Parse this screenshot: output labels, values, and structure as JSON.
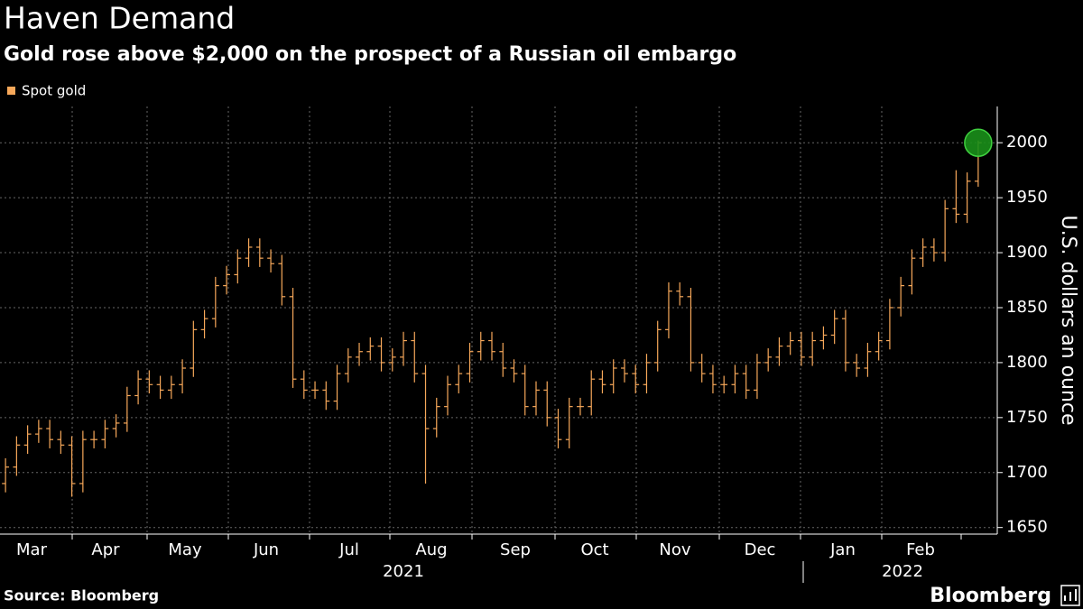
{
  "chart_data": {
    "type": "ohlc",
    "title": "Haven Demand",
    "subtitle": "Gold rose above $2,000 on the prospect of a Russian oil embargo",
    "y_axis_label": "U.S. dollars an ounce",
    "source": "Source: Bloomberg",
    "brand": "Bloomberg",
    "legend": "top-left",
    "grid": true,
    "categories": [
      "Mar",
      "Apr",
      "May",
      "Jun",
      "Jul",
      "Aug",
      "Sep",
      "Oct",
      "Nov",
      "Dec",
      "Jan",
      "Feb"
    ],
    "years": [
      "2021",
      "2022"
    ],
    "ylim": [
      1644,
      2033
    ],
    "yticks": [
      1650,
      1700,
      1750,
      1800,
      1850,
      1900,
      1950,
      2000
    ],
    "series": [
      {
        "name": "Spot gold",
        "color": "#f7a85a",
        "open": [
          1690,
          1705,
          1725,
          1735,
          1740,
          1730,
          1725,
          1690,
          1730,
          1730,
          1740,
          1745,
          1770,
          1785,
          1780,
          1775,
          1780,
          1795,
          1830,
          1840,
          1870,
          1880,
          1895,
          1905,
          1895,
          1890,
          1860,
          1785,
          1775,
          1775,
          1765,
          1790,
          1805,
          1810,
          1815,
          1800,
          1805,
          1820,
          1790,
          1740,
          1760,
          1780,
          1790,
          1810,
          1820,
          1810,
          1795,
          1790,
          1760,
          1775,
          1750,
          1730,
          1760,
          1760,
          1785,
          1780,
          1795,
          1790,
          1780,
          1800,
          1830,
          1865,
          1860,
          1800,
          1790,
          1780,
          1780,
          1790,
          1775,
          1800,
          1805,
          1815,
          1820,
          1805,
          1820,
          1825,
          1840,
          1800,
          1795,
          1810,
          1820,
          1850,
          1870,
          1895,
          1905,
          1900,
          1940,
          1935,
          1965
        ],
        "high": [
          1713,
          1733,
          1743,
          1748,
          1748,
          1738,
          1733,
          1738,
          1738,
          1748,
          1753,
          1778,
          1793,
          1793,
          1788,
          1788,
          1803,
          1838,
          1848,
          1878,
          1888,
          1903,
          1913,
          1913,
          1903,
          1898,
          1868,
          1793,
          1783,
          1783,
          1798,
          1813,
          1818,
          1823,
          1823,
          1813,
          1828,
          1828,
          1798,
          1768,
          1788,
          1798,
          1818,
          1828,
          1828,
          1818,
          1803,
          1798,
          1783,
          1783,
          1758,
          1768,
          1768,
          1793,
          1793,
          1803,
          1803,
          1798,
          1808,
          1838,
          1873,
          1873,
          1868,
          1808,
          1798,
          1788,
          1798,
          1798,
          1808,
          1813,
          1823,
          1828,
          1828,
          1828,
          1833,
          1848,
          1848,
          1808,
          1818,
          1828,
          1858,
          1878,
          1903,
          1913,
          1913,
          1948,
          1975,
          1973,
          2002
        ],
        "low": [
          1682,
          1697,
          1717,
          1727,
          1722,
          1717,
          1678,
          1682,
          1722,
          1722,
          1732,
          1737,
          1762,
          1772,
          1767,
          1767,
          1772,
          1787,
          1822,
          1832,
          1862,
          1872,
          1887,
          1887,
          1882,
          1852,
          1777,
          1767,
          1767,
          1757,
          1757,
          1782,
          1797,
          1802,
          1792,
          1792,
          1797,
          1782,
          1690,
          1732,
          1752,
          1772,
          1782,
          1802,
          1802,
          1787,
          1782,
          1752,
          1752,
          1742,
          1722,
          1722,
          1752,
          1752,
          1772,
          1772,
          1782,
          1772,
          1772,
          1792,
          1822,
          1852,
          1792,
          1782,
          1772,
          1772,
          1772,
          1767,
          1767,
          1792,
          1797,
          1807,
          1797,
          1797,
          1812,
          1817,
          1792,
          1787,
          1787,
          1802,
          1812,
          1842,
          1862,
          1887,
          1892,
          1892,
          1927,
          1927,
          1960
        ],
        "close": [
          1705,
          1725,
          1735,
          1740,
          1730,
          1725,
          1690,
          1730,
          1730,
          1740,
          1745,
          1770,
          1785,
          1780,
          1775,
          1780,
          1795,
          1830,
          1840,
          1870,
          1880,
          1895,
          1905,
          1895,
          1890,
          1860,
          1785,
          1775,
          1775,
          1765,
          1790,
          1805,
          1810,
          1815,
          1800,
          1805,
          1820,
          1790,
          1740,
          1760,
          1780,
          1790,
          1810,
          1820,
          1810,
          1795,
          1790,
          1760,
          1775,
          1750,
          1730,
          1760,
          1760,
          1785,
          1780,
          1795,
          1790,
          1780,
          1800,
          1830,
          1865,
          1860,
          1800,
          1790,
          1780,
          1780,
          1790,
          1775,
          1800,
          1805,
          1815,
          1820,
          1805,
          1820,
          1825,
          1840,
          1800,
          1795,
          1810,
          1820,
          1850,
          1870,
          1895,
          1905,
          1900,
          1940,
          1935,
          1965,
          2000
        ]
      }
    ]
  }
}
